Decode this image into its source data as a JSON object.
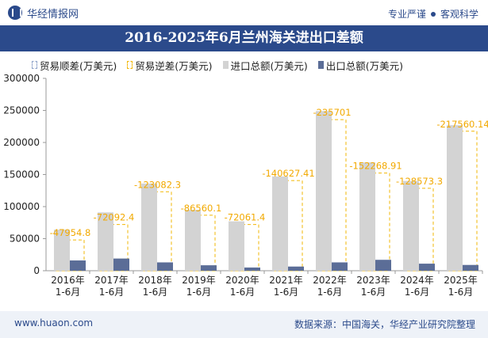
{
  "header": {
    "brand": "华经情报网",
    "slogan_left": "专业严谨",
    "slogan_right": "客观科学"
  },
  "chart_data": {
    "type": "bar",
    "title": "2016-2025年6月兰州海关进出口差额",
    "categories": [
      "2016年\n1-6月",
      "2017年\n1-6月",
      "2018年\n1-6月",
      "2019年\n1-6月",
      "2020年\n1-6月",
      "2021年\n1-6月",
      "2022年\n1-6月",
      "2023年\n1-6月",
      "2024年\n1-6月",
      "2025年\n1-6月"
    ],
    "series": [
      {
        "name": "贸易顺差(万美元)",
        "values": [
          0,
          0,
          0,
          0,
          0,
          0,
          0,
          0,
          0,
          0
        ],
        "color": "#8fa3c9",
        "style": "dashed-outline"
      },
      {
        "name": "贸易逆差(万美元)",
        "values": [
          -47954.8,
          -72092.4,
          -123082.3,
          -86560.1,
          -72061.4,
          -140627.41,
          -235701,
          -152268.91,
          -128573.3,
          -217560.14
        ],
        "color": "#f2b705",
        "style": "dashed-outline"
      },
      {
        "name": "进口总额(万美元)",
        "values": [
          64000,
          91000,
          136000,
          95000,
          77000,
          147000,
          249000,
          169000,
          140000,
          227000
        ],
        "color": "#d3d3d3"
      },
      {
        "name": "出口总额(万美元)",
        "values": [
          16000,
          19000,
          13000,
          8500,
          5000,
          6500,
          13000,
          17000,
          11000,
          9000
        ],
        "color": "#5b6d97"
      }
    ],
    "data_labels": [
      "-47954.8",
      "-72092.4",
      "-123082.3",
      "-86560.1",
      "-72061.4",
      "-140627.41",
      "-235701",
      "-152268.91",
      "-128573.3",
      "-217560.14"
    ],
    "ylim": [
      0,
      300000
    ],
    "yticks": [
      0,
      50000,
      100000,
      150000,
      200000,
      250000,
      300000
    ],
    "grid": false,
    "legend_position": "top"
  },
  "footer": {
    "url": "www.huaon.com",
    "source": "数据来源：中国海关，华经产业研究院整理"
  }
}
